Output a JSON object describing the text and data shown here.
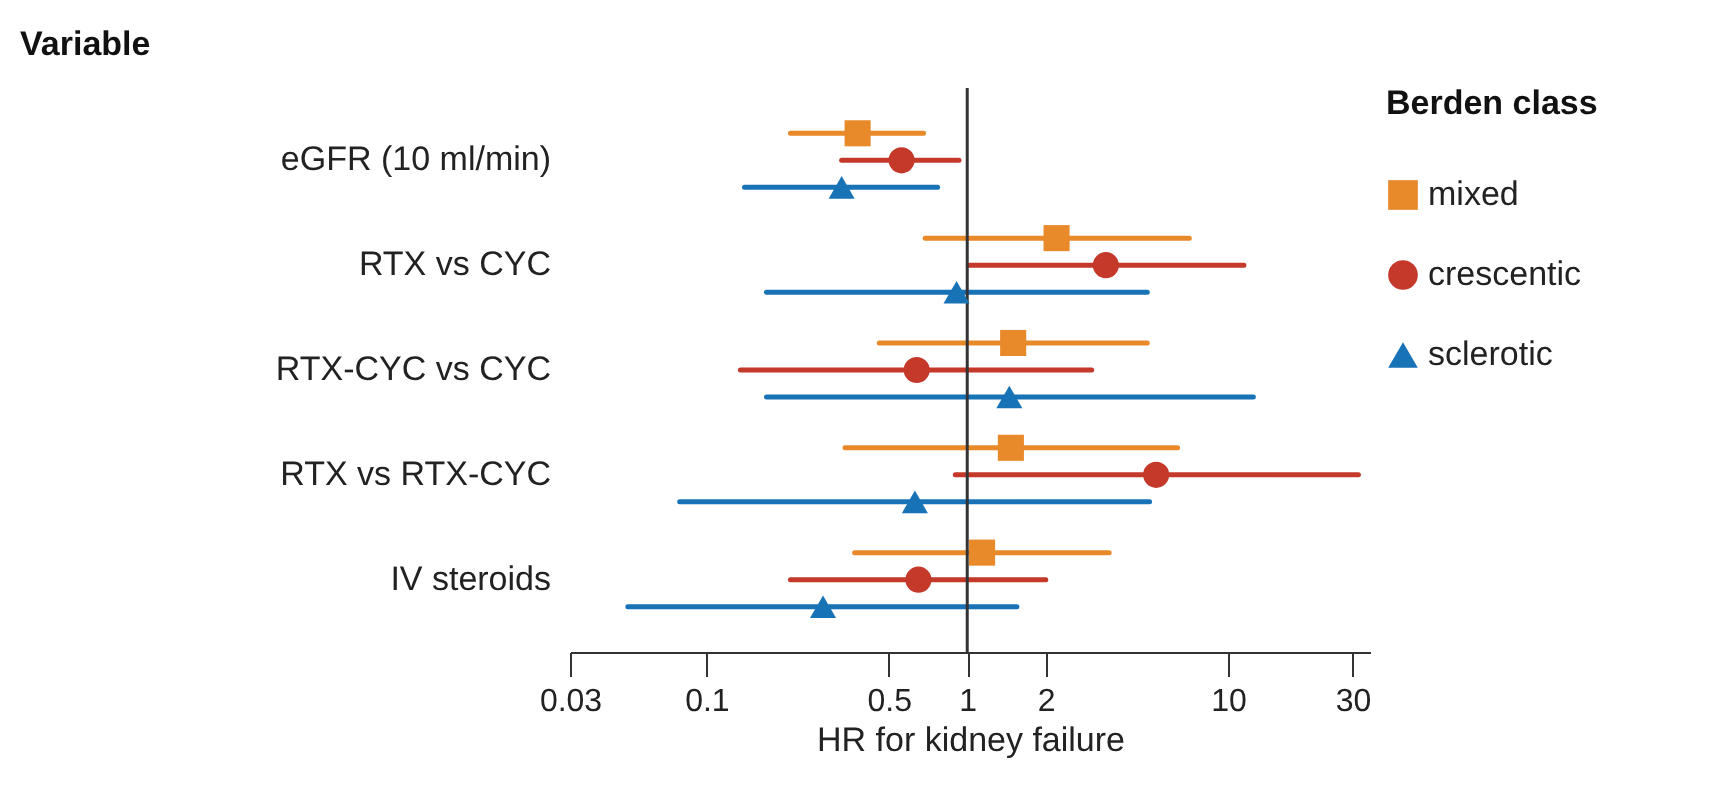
{
  "chart_data": {
    "type": "scatter",
    "annotations": [
      "Variable"
    ],
    "xlabel": "HR for kidney failure",
    "legend_title": "Berden class",
    "legend": "right",
    "orientation": "horizontal",
    "log": "x",
    "grid": false,
    "categories": [
      "eGFR (10 ml/min)",
      "RTX vs CYC",
      "RTX-CYC vs CYC",
      "RTX vs RTX-CYC",
      "IV steroids"
    ],
    "xlim": [
      0.03,
      35
    ],
    "xticks": [
      0.03,
      0.1,
      0.5,
      1,
      2,
      10,
      30
    ],
    "ref_lines": [
      {
        "axis": "x",
        "value": 1,
        "color": "#333333"
      }
    ],
    "series": [
      {
        "name": "mixed",
        "color": "#e8892a",
        "marker": "square",
        "values": [
          0.38,
          2.2,
          1.5,
          1.47,
          1.14
        ],
        "errors": [
          [
            0.21,
            0.68
          ],
          [
            0.69,
            7.1
          ],
          [
            0.46,
            4.9
          ],
          [
            0.34,
            6.4
          ],
          [
            0.37,
            3.5
          ]
        ]
      },
      {
        "name": "crescentic",
        "color": "#c4392a",
        "marker": "circle",
        "values": [
          0.56,
          3.4,
          0.64,
          5.3,
          0.65
        ],
        "errors": [
          [
            0.33,
            0.93
          ],
          [
            1.01,
            11.5
          ],
          [
            0.135,
            3.0
          ],
          [
            0.9,
            31.6
          ],
          [
            0.21,
            2.0
          ]
        ]
      },
      {
        "name": "sclerotic",
        "color": "#1872b6",
        "marker": "triangle",
        "values": [
          0.33,
          0.91,
          1.45,
          0.63,
          0.28
        ],
        "errors": [
          [
            0.14,
            0.77
          ],
          [
            0.17,
            4.9
          ],
          [
            0.17,
            12.5
          ],
          [
            0.079,
            5.0
          ],
          [
            0.05,
            1.55
          ]
        ]
      }
    ]
  }
}
